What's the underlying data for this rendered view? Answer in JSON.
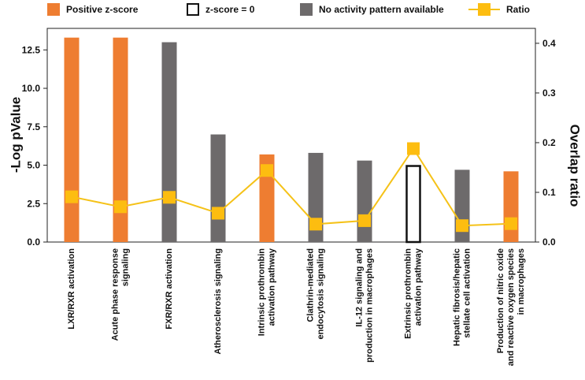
{
  "legend": {
    "positive": "Positive z-score",
    "zero": "z-score = 0",
    "no_activity": "No activity pattern available",
    "ratio": "Ratio"
  },
  "colors": {
    "positive": "#ee7d31",
    "no_activity": "#6d6a6b",
    "zero_outline": "#111111",
    "ratio_line": "#f5c218",
    "ratio_marker": "#fdbd10"
  },
  "chart_data": {
    "type": "bar",
    "ylabel": "-Log pValue",
    "y2label": "Overlap ratio",
    "ylim": [
      0,
      13.9
    ],
    "y2lim": [
      0,
      0.43
    ],
    "yticks": [
      0.0,
      2.5,
      5.0,
      7.5,
      10.0,
      12.5
    ],
    "ytick_labels": [
      "0.0",
      "2.5",
      "5.0",
      "7.5",
      "10.0",
      "12.5"
    ],
    "y2ticks": [
      0.0,
      0.1,
      0.2,
      0.3,
      0.4
    ],
    "y2tick_labels": [
      "0.0",
      "0.1",
      "0.2",
      "0.3",
      "0.4"
    ],
    "categories": [
      "LXR/RXR activation",
      "Acute phase response signaling",
      "FXR/RXR activation",
      "Atherosclerosis signaling",
      "Intrinsic prothrombin activation pathway",
      "Clathrin-mediated endocytosis signaling",
      "IL-12 signaling and production in macrophages",
      "Extrinsic prothrombin activation pathway",
      "Hepatic fibrosis/hepatic stellate cell activation",
      "Production of nitric oxide and reactive oxygen species in macrophages"
    ],
    "category_lines": [
      [
        "LXR/RXR activation"
      ],
      [
        "Acute phase response",
        "signaling"
      ],
      [
        "FXR/RXR activation"
      ],
      [
        "Atherosclerosis signaling"
      ],
      [
        "Intrinsic prothrombin",
        "activation pathway"
      ],
      [
        "Clathrin-mediated",
        "endocytosis signaling"
      ],
      [
        "IL-12 signaling and",
        "production in macrophages"
      ],
      [
        "Extrinsic prothrombin",
        "activation pathway"
      ],
      [
        "Hepatic fibrosis/hepatic",
        "stellate cell activation"
      ],
      [
        "Production of nitric oxide",
        "and reactive oxygen species",
        "in macrophages"
      ]
    ],
    "series": [
      {
        "name": "-Log pValue",
        "values": [
          13.3,
          13.3,
          13.0,
          7.0,
          5.7,
          5.8,
          5.3,
          5.0,
          4.7,
          4.6
        ],
        "z_status": [
          "positive",
          "positive",
          "no_activity",
          "no_activity",
          "positive",
          "no_activity",
          "no_activity",
          "zero",
          "no_activity",
          "positive"
        ]
      },
      {
        "name": "Ratio",
        "values": [
          0.091,
          0.071,
          0.09,
          0.058,
          0.144,
          0.036,
          0.043,
          0.188,
          0.033,
          0.037
        ]
      }
    ]
  }
}
